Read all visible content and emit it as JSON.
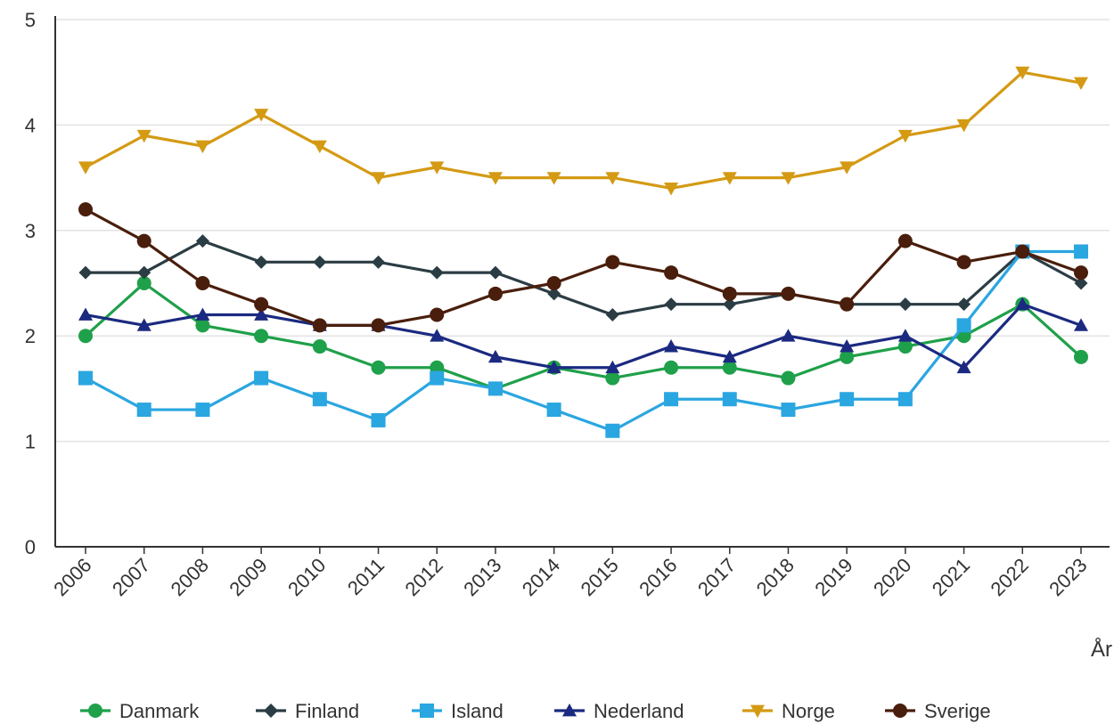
{
  "chart_data": {
    "type": "line",
    "title": "",
    "xlabel": "År",
    "ylabel": "",
    "ylim": [
      0,
      5
    ],
    "yticks": [
      "0",
      "1",
      "2",
      "3",
      "4",
      "5"
    ],
    "grid": true,
    "legend_position": "bottom",
    "categories": [
      "2006",
      "2007",
      "2008",
      "2009",
      "2010",
      "2011",
      "2012",
      "2013",
      "2014",
      "2015",
      "2016",
      "2017",
      "2018",
      "2019",
      "2020",
      "2021",
      "2022",
      "2023"
    ],
    "series": [
      {
        "name": "Danmark",
        "color": "#1fa04a",
        "marker": "circle",
        "values": [
          2.0,
          2.5,
          2.1,
          2.0,
          1.9,
          1.7,
          1.7,
          1.5,
          1.7,
          1.6,
          1.7,
          1.7,
          1.6,
          1.8,
          1.9,
          2.0,
          2.3,
          1.8
        ]
      },
      {
        "name": "Finland",
        "color": "#2b3d44",
        "marker": "diamond",
        "values": [
          2.6,
          2.6,
          2.9,
          2.7,
          2.7,
          2.7,
          2.6,
          2.6,
          2.4,
          2.2,
          2.3,
          2.3,
          2.4,
          2.3,
          2.3,
          2.3,
          2.8,
          2.5
        ]
      },
      {
        "name": "Island",
        "color": "#2aa6e0",
        "marker": "square",
        "values": [
          1.6,
          1.3,
          1.3,
          1.6,
          1.4,
          1.2,
          1.6,
          1.5,
          1.3,
          1.1,
          1.4,
          1.4,
          1.3,
          1.4,
          1.4,
          2.1,
          2.8,
          2.8
        ]
      },
      {
        "name": "Nederland",
        "color": "#1b2a80",
        "marker": "triangle-up",
        "values": [
          2.2,
          2.1,
          2.2,
          2.2,
          2.1,
          2.1,
          2.0,
          1.8,
          1.7,
          1.7,
          1.9,
          1.8,
          2.0,
          1.9,
          2.0,
          1.7,
          2.3,
          2.1
        ]
      },
      {
        "name": "Norge",
        "color": "#d49a14",
        "marker": "triangle-down",
        "values": [
          3.6,
          3.9,
          3.8,
          4.1,
          3.8,
          3.5,
          3.6,
          3.5,
          3.5,
          3.5,
          3.4,
          3.5,
          3.5,
          3.6,
          3.9,
          4.0,
          4.5,
          4.4
        ]
      },
      {
        "name": "Sverige",
        "color": "#4a1e0c",
        "marker": "circle",
        "values": [
          3.2,
          2.9,
          2.5,
          2.3,
          2.1,
          2.1,
          2.2,
          2.4,
          2.5,
          2.7,
          2.6,
          2.4,
          2.4,
          2.3,
          2.9,
          2.7,
          2.8,
          2.6
        ]
      }
    ]
  }
}
